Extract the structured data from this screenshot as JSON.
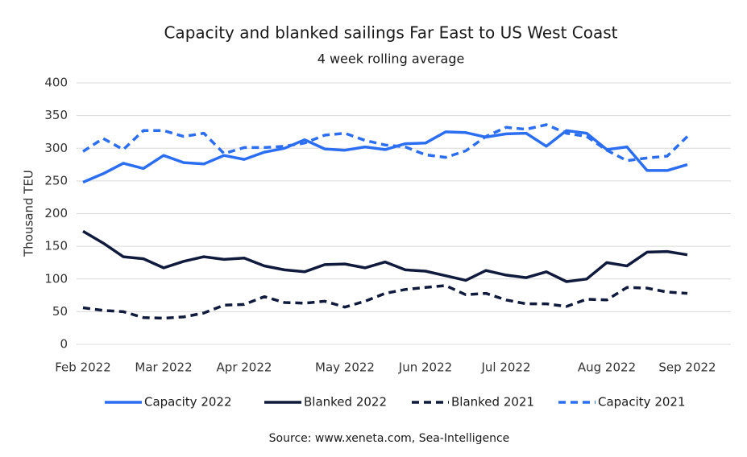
{
  "chart_data": {
    "type": "line",
    "title": "Capacity and blanked sailings Far East to US West Coast",
    "subtitle": "4 week rolling average",
    "y_label": "Thousand TEU",
    "source": "Source: www.xeneta.com, Sea-Intelligence",
    "categories": [
      "Feb 2022",
      null,
      null,
      null,
      "Mar 2022",
      null,
      null,
      null,
      "Apr 2022",
      null,
      null,
      null,
      null,
      "May 2022",
      null,
      null,
      null,
      "Jun 2022",
      null,
      null,
      null,
      "Jul 2022",
      null,
      null,
      null,
      null,
      "Aug 2022",
      null,
      null,
      null,
      "Sep 2022"
    ],
    "ylim": [
      0,
      400
    ],
    "yticks": [
      0,
      50,
      100,
      150,
      200,
      250,
      300,
      350,
      400
    ],
    "grid": true,
    "legend": "bottom",
    "series": [
      {
        "name": "Capacity 2022",
        "color": "#2b6ef2",
        "dashed": false,
        "values": [
          248,
          261,
          277,
          269,
          289,
          278,
          276,
          289,
          283,
          294,
          300,
          313,
          299,
          297,
          302,
          298,
          307,
          308,
          325,
          324,
          317,
          322,
          323,
          303,
          327,
          323,
          298,
          302,
          266,
          266,
          275
        ]
      },
      {
        "name": "Blanked 2022",
        "color": "#0f1a3c",
        "dashed": false,
        "values": [
          173,
          155,
          134,
          131,
          117,
          127,
          134,
          130,
          132,
          120,
          114,
          111,
          122,
          123,
          117,
          126,
          114,
          112,
          105,
          98,
          113,
          106,
          102,
          111,
          96,
          100,
          125,
          120,
          141,
          142,
          137
        ]
      },
      {
        "name": "Blanked 2021",
        "color": "#0f1a3c",
        "dashed": true,
        "values": [
          56,
          52,
          50,
          41,
          40,
          42,
          48,
          60,
          61,
          73,
          64,
          63,
          66,
          57,
          66,
          78,
          84,
          87,
          90,
          76,
          78,
          68,
          62,
          62,
          58,
          69,
          68,
          87,
          86,
          80,
          78
        ]
      },
      {
        "name": "Capacity 2021",
        "color": "#2b6ef2",
        "dashed": true,
        "values": [
          295,
          315,
          298,
          327,
          327,
          318,
          323,
          292,
          301,
          301,
          303,
          308,
          320,
          323,
          312,
          305,
          302,
          290,
          286,
          296,
          318,
          332,
          329,
          336,
          323,
          318,
          297,
          281,
          285,
          288,
          318
        ]
      }
    ]
  }
}
